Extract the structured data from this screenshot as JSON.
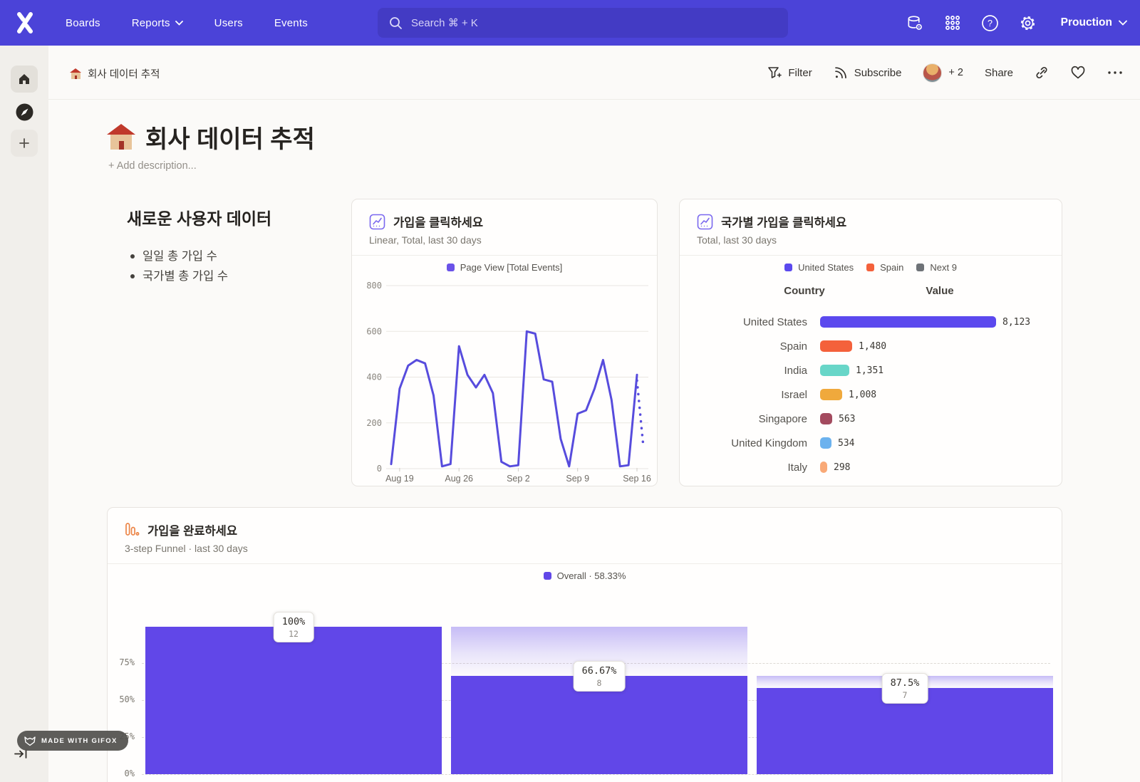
{
  "navbar": {
    "bg_color": "#4b43d8",
    "search_bg": "#433bc4",
    "links": [
      {
        "label": "Boards"
      },
      {
        "label": "Reports"
      },
      {
        "label": "Users"
      },
      {
        "label": "Events"
      }
    ],
    "search_placeholder": "Search  ⌘ + K",
    "project_label": "Prouction"
  },
  "toolbar": {
    "breadcrumb": "회사 데이터 추적",
    "filter_label": "Filter",
    "subscribe_label": "Subscribe",
    "collaborators_more": "+ 2",
    "share_label": "Share"
  },
  "page": {
    "title": "회사 데이터 추적",
    "add_description": "+ Add description..."
  },
  "text_block": {
    "heading": "새로운 사용자 데이터",
    "bullets": [
      "일일 총 가입 수",
      "국가별 총 가입 수"
    ]
  },
  "line_card": {
    "title": "가입을 클릭하세요",
    "subtitle": "Linear, Total, last 30 days",
    "legend": "Page View [Total Events]",
    "legend_color": "#6a52e8"
  },
  "country_card": {
    "title": "국가별 가입을 클릭하세요",
    "subtitle": "Total, last 30 days",
    "legend": [
      {
        "label": "United States",
        "color": "#5b49ee"
      },
      {
        "label": "Spain",
        "color": "#f4613b"
      },
      {
        "label": "Next 9",
        "color": "#6e7277"
      }
    ],
    "columns": [
      "Country",
      "Value"
    ]
  },
  "funnel_card": {
    "title": "가입을 완료하세요",
    "subtitle": "3-step Funnel · last 30 days",
    "legend": "Overall · 58.33%",
    "legend_color": "#6147e8"
  },
  "badge": {
    "label": "MADE WITH GIFOX"
  },
  "chart_data": [
    {
      "type": "line",
      "title": "가입을 클릭하세요",
      "series": [
        {
          "name": "Page View [Total Events]",
          "values": [
            20,
            350,
            450,
            475,
            460,
            320,
            10,
            20,
            535,
            410,
            355,
            410,
            330,
            30,
            10,
            15,
            600,
            590,
            390,
            380,
            130,
            10,
            240,
            255,
            350,
            475,
            300,
            10,
            15,
            410
          ]
        }
      ],
      "projection_end_value": 95,
      "x_tick_labels": [
        "Aug 19",
        "Aug 26",
        "Sep 2",
        "Sep 9",
        "Sep 16"
      ],
      "x_tick_indices": [
        1,
        8,
        15,
        22,
        29
      ],
      "ylim": [
        0,
        800
      ],
      "y_ticks": [
        0,
        200,
        400,
        600,
        800
      ],
      "grid": true,
      "legend_position": "top",
      "line_color": "#574cdd"
    },
    {
      "type": "bar",
      "title": "국가별 가입을 클릭하세요",
      "categories": [
        "United States",
        "Spain",
        "India",
        "Israel",
        "Singapore",
        "United Kingdom",
        "Italy"
      ],
      "values": [
        8123,
        1480,
        1351,
        1008,
        563,
        534,
        298
      ],
      "value_labels": [
        "8,123",
        "1,480",
        "1,351",
        "1,008",
        "563",
        "534",
        "298"
      ],
      "colors": [
        "#5b49ee",
        "#f4613b",
        "#68d6c8",
        "#f0a93c",
        "#a34a5e",
        "#6cb2ee",
        "#f9a977"
      ],
      "xlabel": "Value",
      "ylabel": "Country",
      "clipped_row_color": "#4b43d6"
    },
    {
      "type": "funnel-bar",
      "title": "가입을 완료하세요",
      "overall_conversion": "58.33%",
      "steps": [
        {
          "conversion": "100%",
          "count": 12,
          "height_pct": 100,
          "ghost_from_pct": null
        },
        {
          "conversion": "66.67%",
          "count": 8,
          "height_pct": 66.67,
          "ghost_from_pct": 100
        },
        {
          "conversion": "87.5%",
          "count": 7,
          "height_pct": 58.33,
          "ghost_from_pct": 66.67
        }
      ],
      "y_ticks": [
        "75%",
        "50%",
        "25%",
        "0%"
      ],
      "ylim": [
        0,
        100
      ],
      "bar_color": "#6147e8"
    }
  ]
}
